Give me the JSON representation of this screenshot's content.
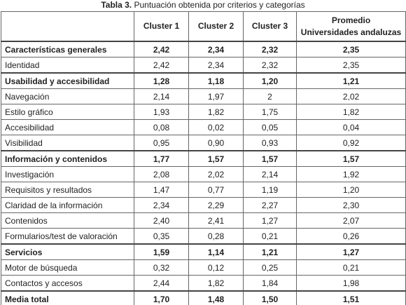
{
  "caption": {
    "label": "Tabla 3.",
    "text": "Puntuación obtenida por criterios y categorías"
  },
  "table": {
    "columns": [
      "Cluster 1",
      "Cluster 2",
      "Cluster 3",
      "Promedio"
    ],
    "last_column_second_line": "Universidades andaluzas",
    "rows": [
      [
        "Características generales",
        "2,42",
        "2,34",
        "2,32",
        "2,35"
      ],
      [
        "Identidad",
        "2,42",
        "2,34",
        "2,32",
        "2,35"
      ],
      [
        "Usabilidad y accesibilidad",
        "1,28",
        "1,18",
        "1,20",
        "1,21"
      ],
      [
        "Navegación",
        "2,14",
        "1,97",
        "2",
        "2,02"
      ],
      [
        "Estilo gráfico",
        "1,93",
        "1,82",
        "1,75",
        "1,82"
      ],
      [
        "Accesibilidad",
        "0,08",
        "0,02",
        "0,05",
        "0,04"
      ],
      [
        "Visibilidad",
        "0,95",
        "0,90",
        "0,93",
        "0,92"
      ],
      [
        "Información y contenidos",
        "1,77",
        "1,57",
        "1,57",
        "1,57"
      ],
      [
        "Investigación",
        "2,08",
        "2,02",
        "2,14",
        "1,92"
      ],
      [
        "Requisitos y resultados",
        "1,47",
        "0,77",
        "1,19",
        "1,20"
      ],
      [
        "Claridad de la información",
        "2,34",
        "2,29",
        "2,27",
        "2,30"
      ],
      [
        "Contenidos",
        "2,40",
        "2,41",
        "1,27",
        "2,07"
      ],
      [
        "Formularios/test de valoración",
        "0,35",
        "0,28",
        "0,21",
        "0,26"
      ],
      [
        "Servicios",
        "1,59",
        "1,14",
        "1,21",
        "1,27"
      ],
      [
        "Motor de búsqueda",
        "0,32",
        "0,12",
        "0,25",
        "0,21"
      ],
      [
        "Contactos y accesos",
        "2,44",
        "1,82",
        "1,84",
        "1,98"
      ],
      [
        "Media total",
        "1,70",
        "1,48",
        "1,50",
        "1,51"
      ]
    ]
  }
}
